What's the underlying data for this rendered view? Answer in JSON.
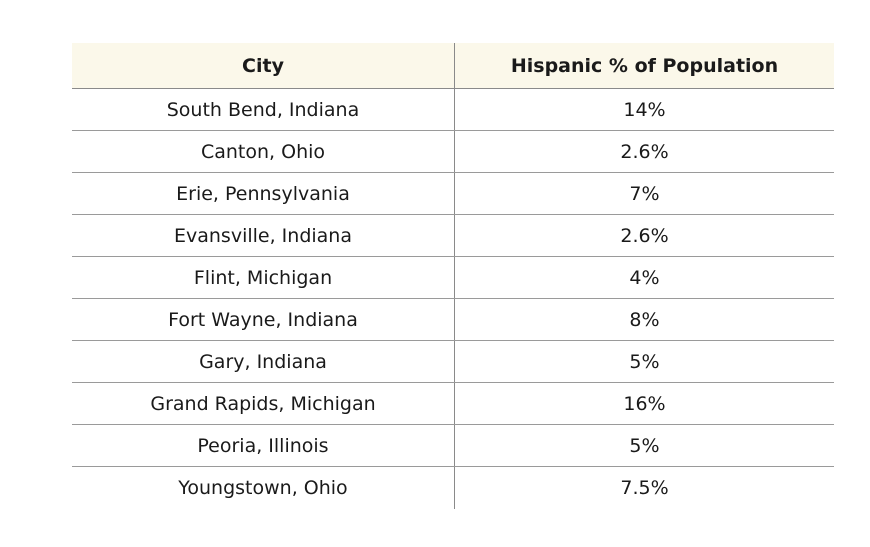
{
  "table": {
    "headers": {
      "city": "City",
      "pct": "Hispanic % of Population"
    },
    "rows": [
      {
        "city": "South Bend, Indiana",
        "pct": "14%"
      },
      {
        "city": "Canton, Ohio",
        "pct": "2.6%"
      },
      {
        "city": "Erie, Pennsylvania",
        "pct": "7%"
      },
      {
        "city": "Evansville, Indiana",
        "pct": "2.6%"
      },
      {
        "city": "Flint, Michigan",
        "pct": "4%"
      },
      {
        "city": "Fort Wayne, Indiana",
        "pct": "8%"
      },
      {
        "city": "Gary, Indiana",
        "pct": "5%"
      },
      {
        "city": "Grand Rapids, Michigan",
        "pct": "16%"
      },
      {
        "city": "Peoria, Illinois",
        "pct": "5%"
      },
      {
        "city": "Youngstown, Ohio",
        "pct": "7.5%"
      }
    ],
    "colors": {
      "header_bg": "#fbf8ea",
      "rule": "#9a9a9a"
    }
  }
}
